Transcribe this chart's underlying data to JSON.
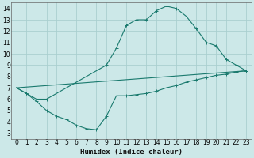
{
  "line1_x": [
    0,
    1,
    2,
    3,
    9,
    10,
    11,
    12,
    13,
    14,
    15,
    16,
    17,
    18,
    19,
    20,
    21,
    22,
    23
  ],
  "line1_y": [
    7.0,
    6.5,
    6.0,
    6.0,
    9.0,
    10.5,
    12.5,
    13.0,
    13.0,
    13.8,
    14.2,
    14.0,
    13.3,
    12.2,
    11.0,
    10.7,
    9.5,
    9.0,
    8.5
  ],
  "line2_x": [
    0,
    23
  ],
  "line2_y": [
    7.0,
    8.5
  ],
  "line3_x": [
    0,
    1,
    2,
    3,
    4,
    5,
    6,
    7,
    8,
    9,
    10,
    11,
    12,
    13,
    14,
    15,
    16,
    17,
    18,
    19,
    20,
    21,
    22,
    23
  ],
  "line3_y": [
    7.0,
    6.5,
    5.8,
    5.0,
    4.5,
    4.2,
    3.7,
    3.4,
    3.3,
    4.5,
    6.3,
    6.3,
    6.4,
    6.5,
    6.7,
    7.0,
    7.2,
    7.5,
    7.7,
    7.9,
    8.1,
    8.2,
    8.4,
    8.5
  ],
  "line_color": "#1a7a6e",
  "bg_color": "#cce8e8",
  "grid_color": "#aacfcf",
  "xlabel": "Humidex (Indice chaleur)",
  "xlim": [
    -0.5,
    23.5
  ],
  "ylim": [
    2.5,
    14.5
  ],
  "xticks": [
    0,
    1,
    2,
    3,
    4,
    5,
    6,
    7,
    8,
    9,
    10,
    11,
    12,
    13,
    14,
    15,
    16,
    17,
    18,
    19,
    20,
    21,
    22,
    23
  ],
  "yticks": [
    3,
    4,
    5,
    6,
    7,
    8,
    9,
    10,
    11,
    12,
    13,
    14
  ],
  "label_fontsize": 6.5,
  "tick_fontsize": 5.5
}
